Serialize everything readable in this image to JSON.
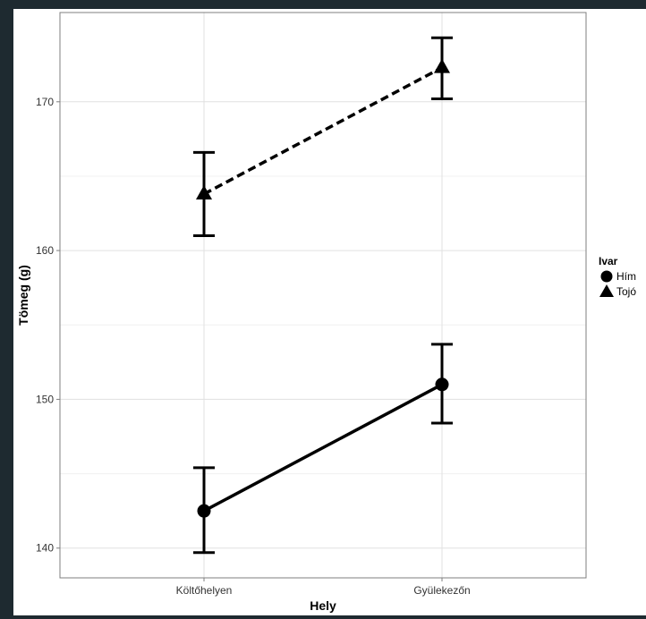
{
  "chart_data": {
    "type": "line",
    "title": "",
    "xlabel": "Hely",
    "ylabel": "Tömeg (g)",
    "categories": [
      "Költőhelyen",
      "Gyülekezőn"
    ],
    "ylim": [
      138,
      176
    ],
    "yticks": [
      140,
      150,
      160,
      170
    ],
    "grid": true,
    "legend": {
      "title": "Ivar",
      "placement": "right"
    },
    "series": [
      {
        "name": "Hím",
        "marker": "circle",
        "line_style": "solid",
        "values": [
          142.5,
          151.0
        ],
        "error_low": [
          139.7,
          148.4
        ],
        "error_high": [
          145.4,
          153.7
        ]
      },
      {
        "name": "Tojó",
        "marker": "triangle",
        "line_style": "dashed",
        "values": [
          163.8,
          172.3
        ],
        "error_low": [
          161.0,
          170.2
        ],
        "error_high": [
          166.6,
          174.3
        ]
      }
    ]
  }
}
